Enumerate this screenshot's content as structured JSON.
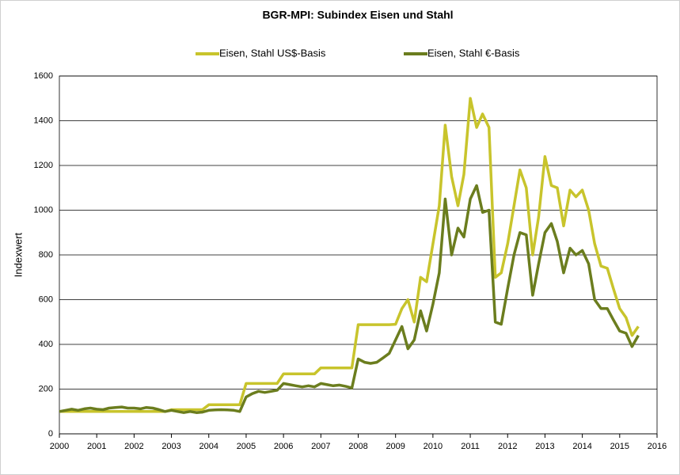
{
  "chart_data": {
    "type": "line",
    "title": "BGR-MPI:  Subindex Eisen und Stahl",
    "y_label": "Indexwert",
    "legend": "top",
    "grid": true,
    "xlim": [
      2000,
      2016
    ],
    "xticks": [
      2000,
      2001,
      2002,
      2003,
      2004,
      2005,
      2006,
      2007,
      2008,
      2009,
      2010,
      2011,
      2012,
      2013,
      2014,
      2015,
      2016
    ],
    "ylim": [
      0,
      1600
    ],
    "yticks": [
      0,
      200,
      400,
      600,
      800,
      1000,
      1200,
      1400,
      1600
    ],
    "x": [
      2000,
      2000.17,
      2000.33,
      2000.5,
      2000.67,
      2000.83,
      2001,
      2001.17,
      2001.33,
      2001.5,
      2001.67,
      2001.83,
      2002,
      2002.17,
      2002.33,
      2002.5,
      2002.67,
      2002.83,
      2003,
      2003.17,
      2003.33,
      2003.5,
      2003.67,
      2003.83,
      2004,
      2004.17,
      2004.33,
      2004.5,
      2004.67,
      2004.83,
      2005,
      2005.17,
      2005.33,
      2005.5,
      2005.67,
      2005.83,
      2006,
      2006.17,
      2006.33,
      2006.5,
      2006.67,
      2006.83,
      2007,
      2007.17,
      2007.33,
      2007.5,
      2007.67,
      2007.83,
      2008,
      2008.17,
      2008.33,
      2008.5,
      2008.67,
      2008.83,
      2009,
      2009.17,
      2009.33,
      2009.5,
      2009.67,
      2009.83,
      2010,
      2010.17,
      2010.33,
      2010.5,
      2010.67,
      2010.83,
      2011,
      2011.17,
      2011.33,
      2011.5,
      2011.67,
      2011.83,
      2012,
      2012.17,
      2012.33,
      2012.5,
      2012.67,
      2012.83,
      2013,
      2013.17,
      2013.33,
      2013.5,
      2013.67,
      2013.83,
      2014,
      2014.17,
      2014.33,
      2014.5,
      2014.67,
      2014.83,
      2015,
      2015.17,
      2015.33,
      2015.5
    ],
    "series": [
      {
        "name": "Eisen, Stahl US$-Basis",
        "color": "#c8c42c",
        "values": [
          100,
          100,
          100,
          100,
          100,
          100,
          100,
          100,
          100,
          100,
          100,
          100,
          100,
          100,
          100,
          100,
          100,
          100,
          108,
          108,
          108,
          108,
          108,
          108,
          130,
          130,
          130,
          130,
          130,
          130,
          225,
          225,
          225,
          225,
          225,
          225,
          268,
          268,
          268,
          268,
          268,
          268,
          295,
          295,
          295,
          295,
          295,
          295,
          488,
          488,
          488,
          488,
          488,
          488,
          490,
          560,
          600,
          500,
          700,
          680,
          850,
          1020,
          1380,
          1150,
          1020,
          1160,
          1500,
          1370,
          1430,
          1370,
          700,
          720,
          850,
          1020,
          1180,
          1100,
          800,
          970,
          1240,
          1110,
          1100,
          930,
          1090,
          1060,
          1090,
          1000,
          850,
          750,
          740,
          650,
          560,
          520,
          440,
          480
        ]
      },
      {
        "name": "Eisen, Stahl €-Basis",
        "color": "#6b7d1e",
        "values": [
          100,
          105,
          110,
          105,
          112,
          115,
          110,
          108,
          115,
          118,
          120,
          115,
          115,
          112,
          118,
          115,
          108,
          100,
          105,
          100,
          95,
          100,
          95,
          97,
          105,
          107,
          108,
          107,
          105,
          100,
          165,
          180,
          190,
          185,
          190,
          195,
          225,
          220,
          215,
          210,
          215,
          210,
          225,
          220,
          215,
          218,
          212,
          205,
          335,
          320,
          315,
          320,
          340,
          360,
          420,
          480,
          380,
          420,
          550,
          460,
          580,
          720,
          1050,
          800,
          920,
          880,
          1050,
          1110,
          990,
          1000,
          500,
          490,
          650,
          800,
          900,
          890,
          620,
          760,
          900,
          940,
          860,
          720,
          830,
          800,
          820,
          760,
          600,
          560,
          560,
          510,
          460,
          450,
          390,
          440
        ]
      }
    ]
  }
}
